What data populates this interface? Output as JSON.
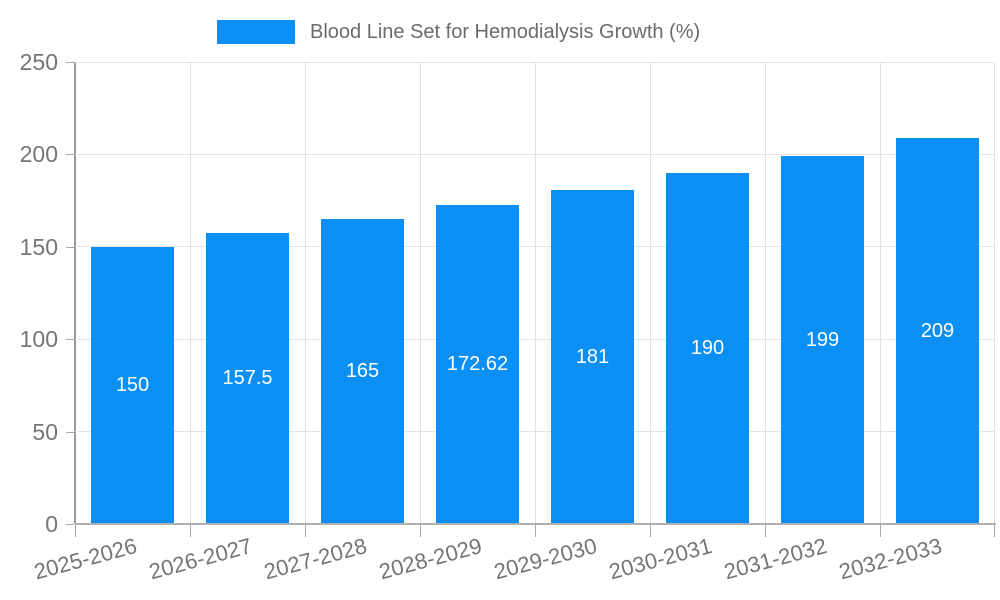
{
  "legend": {
    "label": "Blood Line Set for Hemodialysis Growth (%)"
  },
  "chart_data": {
    "type": "bar",
    "title": "Blood Line Set for Hemodialysis Growth (%)",
    "series_name": "Blood Line Set for Hemodialysis Growth (%)",
    "categories": [
      "2025-2026",
      "2026-2027",
      "2027-2028",
      "2028-2029",
      "2029-2030",
      "2030-2031",
      "2031-2032",
      "2032-2033"
    ],
    "values": [
      150,
      157.5,
      165,
      172.62,
      181,
      190,
      199,
      209
    ],
    "value_labels": [
      "150",
      "157.5",
      "165",
      "172.62",
      "181",
      "190",
      "199",
      "209"
    ],
    "xlabel": "",
    "ylabel": "",
    "ylim": [
      0,
      250
    ],
    "yticks": [
      0,
      50,
      100,
      150,
      200,
      250
    ],
    "grid": true,
    "legend_position": "top"
  },
  "colors": {
    "bar": "#0a90f5",
    "bar_label": "#ffffff",
    "grid": "#e4e4e4",
    "axis": "#a8a8a8",
    "tick_text": "#757575",
    "legend_text": "#6b6b6b",
    "background": "#ffffff"
  }
}
